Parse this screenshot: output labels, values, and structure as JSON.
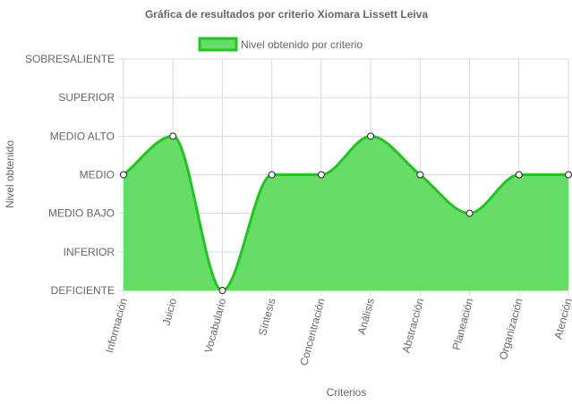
{
  "chart_data": {
    "type": "area",
    "title": "Gráfica de resultados por criterio Xiomara Lissett Leiva",
    "xlabel": "Criterios",
    "ylabel": "Nivel obtenido",
    "categories": [
      "Información",
      "Juicio",
      "Vocabulario",
      "Síntesis",
      "Concentración",
      "Análisis",
      "Abstracción",
      "Planeación",
      "Organización",
      "Atención"
    ],
    "y_levels": [
      "DEFICIENTE",
      "INFERIOR",
      "MEDIO BAJO",
      "MEDIO",
      "MEDIO ALTO",
      "SUPERIOR",
      "SOBRESALIENTE"
    ],
    "ylim": [
      0,
      6
    ],
    "series": [
      {
        "name": "Nivel obtenido por criterio",
        "values": [
          3,
          4,
          0,
          3,
          3,
          4,
          3,
          2,
          3,
          3
        ]
      }
    ],
    "legend_position": "top",
    "grid": true,
    "colors": {
      "fill": "#66dd66",
      "line": "#22c322",
      "point_fill": "#ffffff",
      "point_stroke": "#222222",
      "grid": "#d9d9d9",
      "text": "#666666"
    }
  }
}
